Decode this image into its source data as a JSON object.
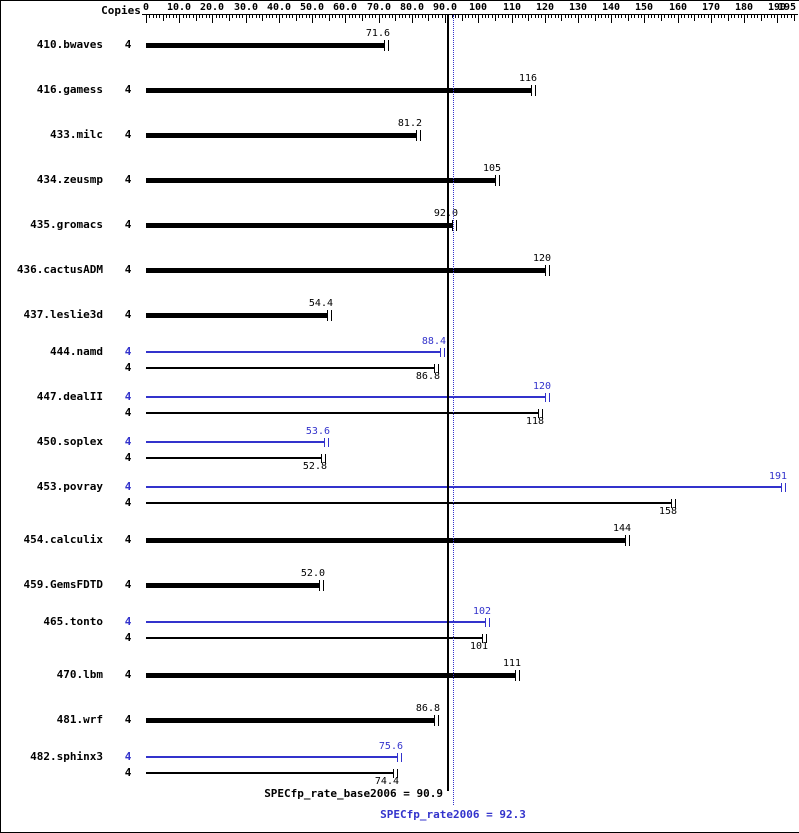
{
  "chart_data": {
    "type": "bar",
    "copies_header": "Copies",
    "colors": {
      "base": "#000000",
      "peak": "#3333cc"
    },
    "axis": {
      "min": 0,
      "max": 195,
      "ticks": [
        {
          "value": 0,
          "label": "0"
        },
        {
          "value": 10,
          "label": "10.0"
        },
        {
          "value": 20,
          "label": "20.0"
        },
        {
          "value": 30,
          "label": "30.0"
        },
        {
          "value": 40,
          "label": "40.0"
        },
        {
          "value": 50,
          "label": "50.0"
        },
        {
          "value": 60,
          "label": "60.0"
        },
        {
          "value": 70,
          "label": "70.0"
        },
        {
          "value": 80,
          "label": "80.0"
        },
        {
          "value": 90,
          "label": "90.0"
        },
        {
          "value": 100,
          "label": "100"
        },
        {
          "value": 110,
          "label": "110"
        },
        {
          "value": 120,
          "label": "120"
        },
        {
          "value": 130,
          "label": "130"
        },
        {
          "value": 140,
          "label": "140"
        },
        {
          "value": 150,
          "label": "150"
        },
        {
          "value": 160,
          "label": "160"
        },
        {
          "value": 170,
          "label": "170"
        },
        {
          "value": 180,
          "label": "180"
        },
        {
          "value": 190,
          "label": "190"
        },
        {
          "value": 195,
          "label": "195"
        }
      ]
    },
    "benchmarks": [
      {
        "name": "410.bwaves",
        "copies": "4",
        "base": 71.6,
        "base_label": "71.6"
      },
      {
        "name": "416.gamess",
        "copies": "4",
        "base": 116,
        "base_label": "116"
      },
      {
        "name": "433.milc",
        "copies": "4",
        "base": 81.2,
        "base_label": "81.2"
      },
      {
        "name": "434.zeusmp",
        "copies": "4",
        "base": 105,
        "base_label": "105"
      },
      {
        "name": "435.gromacs",
        "copies": "4",
        "base": 92.0,
        "base_label": "92.0"
      },
      {
        "name": "436.cactusADM",
        "copies": "4",
        "base": 120,
        "base_label": "120"
      },
      {
        "name": "437.leslie3d",
        "copies": "4",
        "base": 54.4,
        "base_label": "54.4"
      },
      {
        "name": "444.namd",
        "copies": "4",
        "base": 86.8,
        "base_label": "86.8",
        "peak": 88.4,
        "peak_label": "88.4"
      },
      {
        "name": "447.dealII",
        "copies": "4",
        "base": 118,
        "base_label": "118",
        "peak": 120,
        "peak_label": "120"
      },
      {
        "name": "450.soplex",
        "copies": "4",
        "base": 52.8,
        "base_label": "52.8",
        "peak": 53.6,
        "peak_label": "53.6"
      },
      {
        "name": "453.povray",
        "copies": "4",
        "base": 158,
        "base_label": "158",
        "peak": 191,
        "peak_label": "191"
      },
      {
        "name": "454.calculix",
        "copies": "4",
        "base": 144,
        "base_label": "144"
      },
      {
        "name": "459.GemsFDTD",
        "copies": "4",
        "base": 52.0,
        "base_label": "52.0"
      },
      {
        "name": "465.tonto",
        "copies": "4",
        "base": 101,
        "base_label": "101",
        "peak": 102,
        "peak_label": "102"
      },
      {
        "name": "470.lbm",
        "copies": "4",
        "base": 111,
        "base_label": "111"
      },
      {
        "name": "481.wrf",
        "copies": "4",
        "base": 86.8,
        "base_label": "86.8"
      },
      {
        "name": "482.sphinx3",
        "copies": "4",
        "base": 74.4,
        "base_label": "74.4",
        "peak": 75.6,
        "peak_label": "75.6"
      }
    ],
    "summary": {
      "base_value": 90.9,
      "base_text": "SPECfp_rate_base2006 = 90.9",
      "peak_value": 92.3,
      "peak_text": "SPECfp_rate2006 = 92.3"
    }
  }
}
